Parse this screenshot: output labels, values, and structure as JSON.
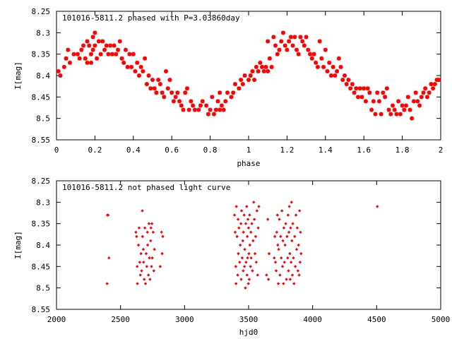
{
  "chart_data": [
    {
      "type": "scatter",
      "title": "101016-5811.2 phased with P=3.03860day",
      "xlabel": "phase",
      "ylabel": "I[mag]",
      "xlim": [
        0,
        2
      ],
      "ylim": [
        8.25,
        8.55
      ],
      "y_inverted": true,
      "grid": false,
      "legend": "none",
      "marker": "asterisk",
      "color": "#ff0000",
      "xticks": [
        0,
        0.2,
        0.4,
        0.6,
        0.8,
        1,
        1.2,
        1.4,
        1.6,
        1.8,
        2
      ],
      "xtick_labels": [
        "0",
        "0.2",
        "0.4",
        "0.6",
        "0.8",
        "1",
        "1.2",
        "1.4",
        "1.6",
        "1.8",
        "2"
      ],
      "yticks": [
        8.25,
        8.3,
        8.35,
        8.4,
        8.45,
        8.5,
        8.55
      ],
      "ytick_labels": [
        "8.25",
        "8.3",
        "8.35",
        "8.4",
        "8.45",
        "8.5",
        "8.55"
      ],
      "points": [
        [
          0.01,
          8.39
        ],
        [
          0.02,
          8.4
        ],
        [
          0.04,
          8.38
        ],
        [
          0.05,
          8.36
        ],
        [
          0.06,
          8.34
        ],
        [
          0.07,
          8.37
        ],
        [
          0.09,
          8.35
        ],
        [
          0.11,
          8.35
        ],
        [
          0.12,
          8.36
        ],
        [
          0.13,
          8.34
        ],
        [
          0.14,
          8.33
        ],
        [
          0.15,
          8.36
        ],
        [
          0.16,
          8.32
        ],
        [
          0.16,
          8.37
        ],
        [
          0.17,
          8.33
        ],
        [
          0.18,
          8.35
        ],
        [
          0.18,
          8.37
        ],
        [
          0.19,
          8.31
        ],
        [
          0.19,
          8.34
        ],
        [
          0.2,
          8.3
        ],
        [
          0.2,
          8.33
        ],
        [
          0.21,
          8.36
        ],
        [
          0.22,
          8.32
        ],
        [
          0.23,
          8.35
        ],
        [
          0.24,
          8.32
        ],
        [
          0.25,
          8.34
        ],
        [
          0.26,
          8.33
        ],
        [
          0.27,
          8.35
        ],
        [
          0.28,
          8.33
        ],
        [
          0.29,
          8.35
        ],
        [
          0.3,
          8.33
        ],
        [
          0.31,
          8.35
        ],
        [
          0.32,
          8.34
        ],
        [
          0.33,
          8.32
        ],
        [
          0.34,
          8.36
        ],
        [
          0.35,
          8.37
        ],
        [
          0.36,
          8.34
        ],
        [
          0.37,
          8.38
        ],
        [
          0.38,
          8.35
        ],
        [
          0.39,
          8.38
        ],
        [
          0.4,
          8.35
        ],
        [
          0.41,
          8.39
        ],
        [
          0.42,
          8.37
        ],
        [
          0.43,
          8.4
        ],
        [
          0.44,
          8.38
        ],
        [
          0.45,
          8.39
        ],
        [
          0.46,
          8.36
        ],
        [
          0.47,
          8.42
        ],
        [
          0.48,
          8.4
        ],
        [
          0.49,
          8.43
        ],
        [
          0.5,
          8.41
        ],
        [
          0.51,
          8.43
        ],
        [
          0.52,
          8.44
        ],
        [
          0.53,
          8.41
        ],
        [
          0.54,
          8.42
        ],
        [
          0.55,
          8.44
        ],
        [
          0.56,
          8.45
        ],
        [
          0.57,
          8.39
        ],
        [
          0.58,
          8.43
        ],
        [
          0.59,
          8.41
        ],
        [
          0.6,
          8.44
        ],
        [
          0.61,
          8.46
        ],
        [
          0.62,
          8.45
        ],
        [
          0.63,
          8.44
        ],
        [
          0.64,
          8.46
        ],
        [
          0.65,
          8.47
        ],
        [
          0.66,
          8.48
        ],
        [
          0.67,
          8.44
        ],
        [
          0.68,
          8.43
        ],
        [
          0.69,
          8.48
        ],
        [
          0.7,
          8.46
        ],
        [
          0.71,
          8.47
        ],
        [
          0.72,
          8.48
        ],
        [
          0.74,
          8.48
        ],
        [
          0.75,
          8.47
        ],
        [
          0.76,
          8.46
        ],
        [
          0.78,
          8.47
        ],
        [
          0.79,
          8.49
        ],
        [
          0.8,
          8.48
        ],
        [
          0.81,
          8.45
        ],
        [
          0.82,
          8.49
        ],
        [
          0.83,
          8.48
        ],
        [
          0.84,
          8.46
        ],
        [
          0.85,
          8.44
        ],
        [
          0.85,
          8.48
        ],
        [
          0.86,
          8.47
        ],
        [
          0.87,
          8.48
        ],
        [
          0.88,
          8.46
        ],
        [
          0.89,
          8.44
        ],
        [
          0.91,
          8.45
        ],
        [
          0.92,
          8.44
        ],
        [
          0.93,
          8.42
        ],
        [
          0.95,
          8.43
        ],
        [
          0.96,
          8.41
        ],
        [
          0.97,
          8.42
        ],
        [
          0.98,
          8.4
        ],
        [
          1.0,
          8.41
        ],
        [
          1.01,
          8.4
        ],
        [
          1.02,
          8.39
        ],
        [
          1.03,
          8.41
        ],
        [
          1.04,
          8.38
        ],
        [
          1.05,
          8.39
        ],
        [
          1.06,
          8.37
        ],
        [
          1.07,
          8.38
        ],
        [
          1.08,
          8.39
        ],
        [
          1.09,
          8.38
        ],
        [
          1.1,
          8.39
        ],
        [
          1.1,
          8.32
        ],
        [
          1.11,
          8.36
        ],
        [
          1.12,
          8.38
        ],
        [
          1.13,
          8.31
        ],
        [
          1.14,
          8.33
        ],
        [
          1.15,
          8.35
        ],
        [
          1.16,
          8.34
        ],
        [
          1.17,
          8.32
        ],
        [
          1.18,
          8.3
        ],
        [
          1.19,
          8.33
        ],
        [
          1.2,
          8.34
        ],
        [
          1.21,
          8.32
        ],
        [
          1.22,
          8.31
        ],
        [
          1.23,
          8.33
        ],
        [
          1.24,
          8.31
        ],
        [
          1.25,
          8.34
        ],
        [
          1.26,
          8.35
        ],
        [
          1.27,
          8.31
        ],
        [
          1.28,
          8.32
        ],
        [
          1.29,
          8.33
        ],
        [
          1.3,
          8.31
        ],
        [
          1.31,
          8.34
        ],
        [
          1.32,
          8.35
        ],
        [
          1.33,
          8.36
        ],
        [
          1.34,
          8.35
        ],
        [
          1.35,
          8.37
        ],
        [
          1.36,
          8.38
        ],
        [
          1.37,
          8.32
        ],
        [
          1.38,
          8.36
        ],
        [
          1.39,
          8.38
        ],
        [
          1.4,
          8.34
        ],
        [
          1.41,
          8.39
        ],
        [
          1.42,
          8.37
        ],
        [
          1.43,
          8.4
        ],
        [
          1.44,
          8.38
        ],
        [
          1.45,
          8.4
        ],
        [
          1.46,
          8.39
        ],
        [
          1.47,
          8.36
        ],
        [
          1.48,
          8.38
        ],
        [
          1.49,
          8.41
        ],
        [
          1.5,
          8.4
        ],
        [
          1.51,
          8.42
        ],
        [
          1.52,
          8.41
        ],
        [
          1.53,
          8.43
        ],
        [
          1.54,
          8.42
        ],
        [
          1.55,
          8.44
        ],
        [
          1.56,
          8.43
        ],
        [
          1.57,
          8.45
        ],
        [
          1.58,
          8.43
        ],
        [
          1.59,
          8.45
        ],
        [
          1.6,
          8.43
        ],
        [
          1.61,
          8.46
        ],
        [
          1.62,
          8.43
        ],
        [
          1.63,
          8.44
        ],
        [
          1.64,
          8.48
        ],
        [
          1.65,
          8.46
        ],
        [
          1.66,
          8.49
        ],
        [
          1.67,
          8.44
        ],
        [
          1.68,
          8.46
        ],
        [
          1.69,
          8.49
        ],
        [
          1.7,
          8.44
        ],
        [
          1.71,
          8.45
        ],
        [
          1.72,
          8.43
        ],
        [
          1.73,
          8.48
        ],
        [
          1.74,
          8.49
        ],
        [
          1.75,
          8.47
        ],
        [
          1.76,
          8.48
        ],
        [
          1.77,
          8.49
        ],
        [
          1.78,
          8.46
        ],
        [
          1.79,
          8.49
        ],
        [
          1.8,
          8.47
        ],
        [
          1.81,
          8.48
        ],
        [
          1.82,
          8.47
        ],
        [
          1.83,
          8.45
        ],
        [
          1.84,
          8.48
        ],
        [
          1.85,
          8.5
        ],
        [
          1.86,
          8.46
        ],
        [
          1.87,
          8.44
        ],
        [
          1.88,
          8.46
        ],
        [
          1.89,
          8.47
        ],
        [
          1.9,
          8.45
        ],
        [
          1.91,
          8.44
        ],
        [
          1.92,
          8.43
        ],
        [
          1.93,
          8.45
        ],
        [
          1.94,
          8.44
        ],
        [
          1.95,
          8.42
        ],
        [
          1.96,
          8.43
        ],
        [
          1.97,
          8.42
        ],
        [
          1.98,
          8.41
        ],
        [
          1.99,
          8.41
        ]
      ]
    },
    {
      "type": "scatter",
      "title": "101016-5811.2 not phased light curve",
      "xlabel": "hjd0",
      "ylabel": "I[mag]",
      "xlim": [
        2000,
        5000
      ],
      "ylim": [
        8.25,
        8.55
      ],
      "y_inverted": true,
      "grid": false,
      "legend": "none",
      "marker": "diamond",
      "color": "#ff0000",
      "xticks": [
        2000,
        2500,
        3000,
        3500,
        4000,
        4500,
        5000
      ],
      "xtick_labels": [
        "2000",
        "2500",
        "3000",
        "3500",
        "4000",
        "4500",
        "5000"
      ],
      "yticks": [
        8.25,
        8.3,
        8.35,
        8.4,
        8.45,
        8.5,
        8.55
      ],
      "ytick_labels": [
        "8.25",
        "8.3",
        "8.35",
        "8.4",
        "8.45",
        "8.5",
        "8.55"
      ],
      "points": [
        [
          2398,
          8.33
        ],
        [
          2403,
          8.33
        ],
        [
          2410,
          8.43
        ],
        [
          2395,
          8.49
        ],
        [
          2620,
          8.37
        ],
        [
          2625,
          8.38
        ],
        [
          2630,
          8.45
        ],
        [
          2632,
          8.49
        ],
        [
          2640,
          8.4
        ],
        [
          2645,
          8.36
        ],
        [
          2650,
          8.44
        ],
        [
          2655,
          8.47
        ],
        [
          2660,
          8.42
        ],
        [
          2665,
          8.46
        ],
        [
          2670,
          8.32
        ],
        [
          2672,
          8.38
        ],
        [
          2678,
          8.41
        ],
        [
          2680,
          8.44
        ],
        [
          2685,
          8.48
        ],
        [
          2690,
          8.36
        ],
        [
          2695,
          8.49
        ],
        [
          2700,
          8.42
        ],
        [
          2705,
          8.45
        ],
        [
          2710,
          8.37
        ],
        [
          2712,
          8.4
        ],
        [
          2718,
          8.47
        ],
        [
          2722,
          8.35
        ],
        [
          2725,
          8.43
        ],
        [
          2730,
          8.48
        ],
        [
          2735,
          8.39
        ],
        [
          2738,
          8.36
        ],
        [
          2742,
          8.45
        ],
        [
          2745,
          8.35
        ],
        [
          2748,
          8.43
        ],
        [
          2755,
          8.37
        ],
        [
          2760,
          8.46
        ],
        [
          2765,
          8.41
        ],
        [
          2810,
          8.45
        ],
        [
          2820,
          8.37
        ],
        [
          2825,
          8.42
        ],
        [
          2830,
          8.38
        ],
        [
          3390,
          8.33
        ],
        [
          3395,
          8.37
        ],
        [
          3400,
          8.45
        ],
        [
          3402,
          8.49
        ],
        [
          3405,
          8.31
        ],
        [
          3410,
          8.38
        ],
        [
          3415,
          8.47
        ],
        [
          3418,
          8.34
        ],
        [
          3420,
          8.42
        ],
        [
          3425,
          8.36
        ],
        [
          3430,
          8.44
        ],
        [
          3435,
          8.4
        ],
        [
          3440,
          8.35
        ],
        [
          3442,
          8.48
        ],
        [
          3445,
          8.32
        ],
        [
          3450,
          8.43
        ],
        [
          3455,
          8.39
        ],
        [
          3458,
          8.46
        ],
        [
          3460,
          8.37
        ],
        [
          3465,
          8.33
        ],
        [
          3468,
          8.45
        ],
        [
          3470,
          8.41
        ],
        [
          3475,
          8.5
        ],
        [
          3478,
          8.35
        ],
        [
          3480,
          8.44
        ],
        [
          3485,
          8.31
        ],
        [
          3488,
          8.47
        ],
        [
          3490,
          8.38
        ],
        [
          3492,
          8.43
        ],
        [
          3495,
          8.34
        ],
        [
          3498,
          8.49
        ],
        [
          3500,
          8.36
        ],
        [
          3502,
          8.42
        ],
        [
          3505,
          8.48
        ],
        [
          3508,
          8.33
        ],
        [
          3510,
          8.4
        ],
        [
          3515,
          8.45
        ],
        [
          3518,
          8.37
        ],
        [
          3520,
          8.43
        ],
        [
          3525,
          8.35
        ],
        [
          3530,
          8.46
        ],
        [
          3535,
          8.39
        ],
        [
          3540,
          8.3
        ],
        [
          3545,
          8.34
        ],
        [
          3550,
          8.42
        ],
        [
          3555,
          8.38
        ],
        [
          3560,
          8.44
        ],
        [
          3565,
          8.32
        ],
        [
          3570,
          8.47
        ],
        [
          3575,
          8.36
        ],
        [
          3580,
          8.31
        ],
        [
          3640,
          8.47
        ],
        [
          3650,
          8.34
        ],
        [
          3655,
          8.48
        ],
        [
          3660,
          8.42
        ],
        [
          3700,
          8.43
        ],
        [
          3705,
          8.38
        ],
        [
          3710,
          8.44
        ],
        [
          3715,
          8.46
        ],
        [
          3720,
          8.37
        ],
        [
          3725,
          8.33
        ],
        [
          3728,
          8.4
        ],
        [
          3732,
          8.49
        ],
        [
          3735,
          8.41
        ],
        [
          3740,
          8.34
        ],
        [
          3745,
          8.47
        ],
        [
          3750,
          8.38
        ],
        [
          3755,
          8.43
        ],
        [
          3760,
          8.32
        ],
        [
          3765,
          8.45
        ],
        [
          3768,
          8.39
        ],
        [
          3772,
          8.49
        ],
        [
          3775,
          8.36
        ],
        [
          3780,
          8.44
        ],
        [
          3785,
          8.4
        ],
        [
          3790,
          8.35
        ],
        [
          3795,
          8.48
        ],
        [
          3800,
          8.38
        ],
        [
          3805,
          8.43
        ],
        [
          3808,
          8.33
        ],
        [
          3812,
          8.46
        ],
        [
          3815,
          8.37
        ],
        [
          3818,
          8.31
        ],
        [
          3822,
          8.42
        ],
        [
          3825,
          8.48
        ],
        [
          3828,
          8.36
        ],
        [
          3832,
          8.44
        ],
        [
          3835,
          8.3
        ],
        [
          3838,
          8.39
        ],
        [
          3842,
          8.47
        ],
        [
          3845,
          8.35
        ],
        [
          3850,
          8.43
        ],
        [
          3855,
          8.49
        ],
        [
          3860,
          8.38
        ],
        [
          3865,
          8.45
        ],
        [
          3870,
          8.33
        ],
        [
          3875,
          8.41
        ],
        [
          3880,
          8.36
        ],
        [
          3885,
          8.46
        ],
        [
          3890,
          8.4
        ],
        [
          3895,
          8.47
        ],
        [
          3898,
          8.32
        ],
        [
          3902,
          8.44
        ],
        [
          3905,
          8.37
        ],
        [
          3910,
          8.42
        ],
        [
          4505,
          8.31
        ]
      ]
    }
  ]
}
